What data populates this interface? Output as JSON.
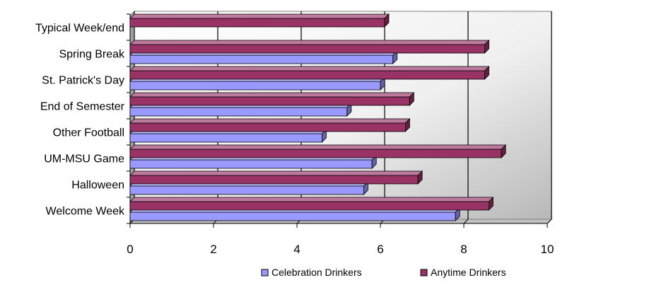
{
  "chart_data": {
    "type": "bar",
    "orientation": "horizontal",
    "categories": [
      "Welcome Week",
      "Halloween",
      "UM-MSU Game",
      "Other Football",
      "End of Semester",
      "St. Patrick's Day",
      "Spring Break",
      "Typical Week/end"
    ],
    "series": [
      {
        "name": "Celebration Drinkers",
        "values": [
          7.8,
          5.6,
          5.8,
          4.6,
          5.2,
          6.0,
          6.3,
          null
        ],
        "color": "#9999ff"
      },
      {
        "name": "Anytime Drinkers",
        "values": [
          8.6,
          6.9,
          8.9,
          6.6,
          6.7,
          8.5,
          8.5,
          6.1
        ],
        "color": "#993366"
      }
    ],
    "xlim": [
      0,
      10
    ],
    "x_ticks": [
      "0",
      "2",
      "4",
      "6",
      "8",
      "10"
    ],
    "grid": "vertical",
    "legend_position": "bottom",
    "style": "3d",
    "plot_background": "gradient-white-to-gray"
  }
}
